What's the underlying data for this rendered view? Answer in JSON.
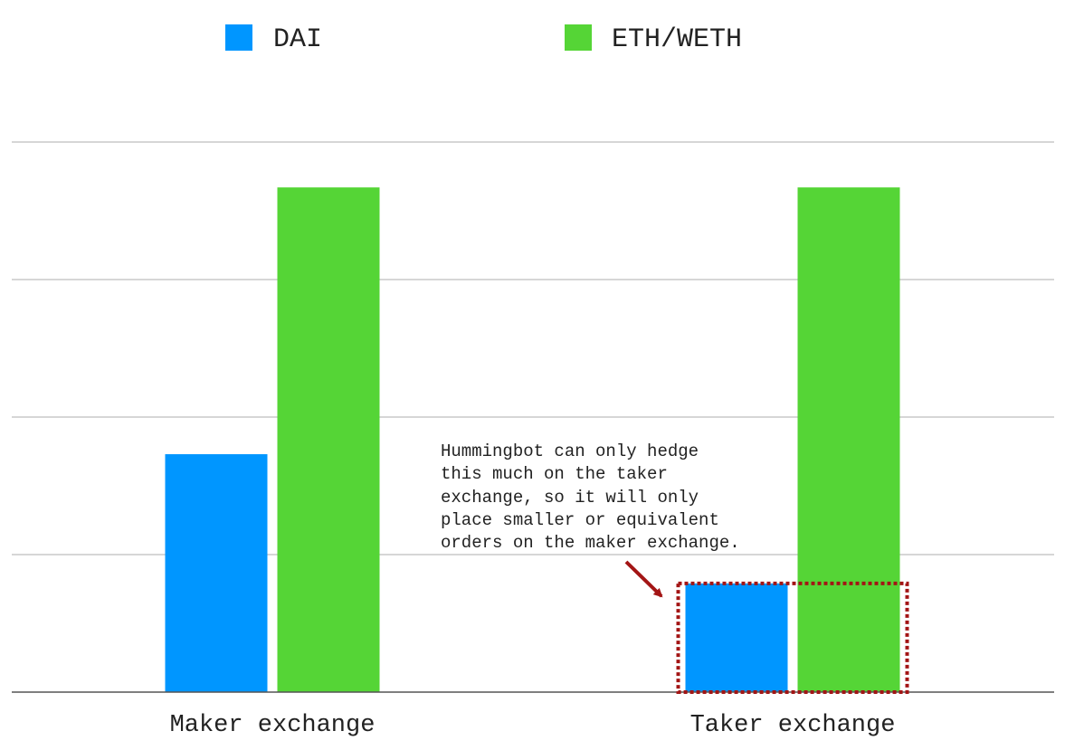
{
  "chart_data": {
    "type": "bar",
    "categories": [
      "Maker exchange",
      "Taker exchange"
    ],
    "series": [
      {
        "name": "DAI",
        "color": "#0096FF",
        "values": [
          1.73,
          0.79
        ]
      },
      {
        "name": "ETH/WETH",
        "color": "#55D536",
        "values": [
          3.67,
          3.67
        ]
      }
    ],
    "ylim": [
      0,
      4
    ],
    "grid": true,
    "y_tick_labels_shown": false,
    "legend_position": "top",
    "annotation": {
      "lines": [
        "Hummingbot can only hedge",
        "this much on the taker",
        "exchange, so it will only",
        "place smaller or equivalent",
        "orders on the maker exchange."
      ],
      "arrow_color": "#A31515",
      "box_style": "dotted",
      "box_color": "#A31515",
      "highlights_category": "Taker exchange"
    }
  }
}
